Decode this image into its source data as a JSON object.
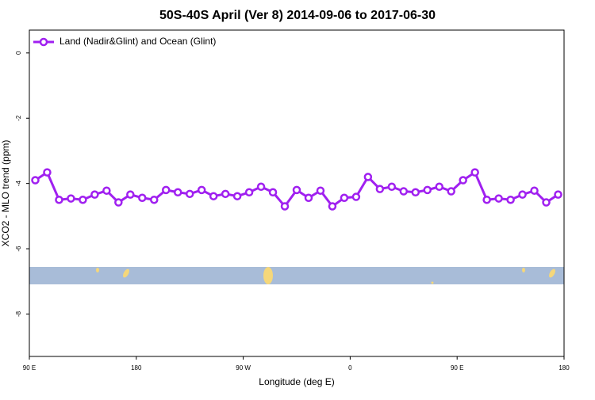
{
  "chart_data": {
    "type": "line",
    "title": "50S-40S April (Ver 8)   2014-09-06 to 2017-06-30",
    "x_label": "Longitude (deg E)",
    "y_label": "XCO2 - MLO trend (ppm)",
    "x": [
      95,
      105,
      115,
      125,
      135,
      145,
      155,
      165,
      175,
      185,
      195,
      205,
      215,
      225,
      235,
      245,
      255,
      265,
      275,
      285,
      295,
      305,
      315,
      325,
      335,
      345,
      355,
      365,
      375,
      385,
      395,
      405,
      415,
      425,
      435,
      445,
      455,
      465,
      475,
      485,
      495,
      505,
      515,
      525,
      535
    ],
    "series": [
      {
        "name": "Land (Nadir&Glint) and Ocean (Glint)",
        "color": "#a020f0",
        "values": [
          -3.9,
          -3.66,
          -4.5,
          -4.46,
          -4.5,
          -4.34,
          -4.22,
          -4.58,
          -4.34,
          -4.44,
          -4.5,
          -4.2,
          -4.27,
          -4.32,
          -4.2,
          -4.39,
          -4.32,
          -4.39,
          -4.27,
          -4.1,
          -4.27,
          -4.7,
          -4.2,
          -4.44,
          -4.22,
          -4.7,
          -4.44,
          -4.41,
          -3.8,
          -4.17,
          -4.1,
          -4.24,
          -4.27,
          -4.2,
          -4.1,
          -4.24,
          -3.9,
          -3.66,
          -4.5,
          -4.46,
          -4.5,
          -4.34,
          -4.22,
          -4.58,
          -4.34
        ]
      }
    ],
    "xlim": [
      90,
      540
    ],
    "xticks": [
      {
        "value": 90,
        "label": "90 E"
      },
      {
        "value": 180,
        "label": "180"
      },
      {
        "value": 270,
        "label": "90 W"
      },
      {
        "value": 360,
        "label": "0"
      },
      {
        "value": 450,
        "label": "90 E"
      },
      {
        "value": 540,
        "label": "180"
      }
    ],
    "ylim": [
      -9.3,
      0.7
    ],
    "yticks": [
      0,
      -2,
      -4,
      -6,
      -8
    ],
    "legend": "top-left"
  }
}
